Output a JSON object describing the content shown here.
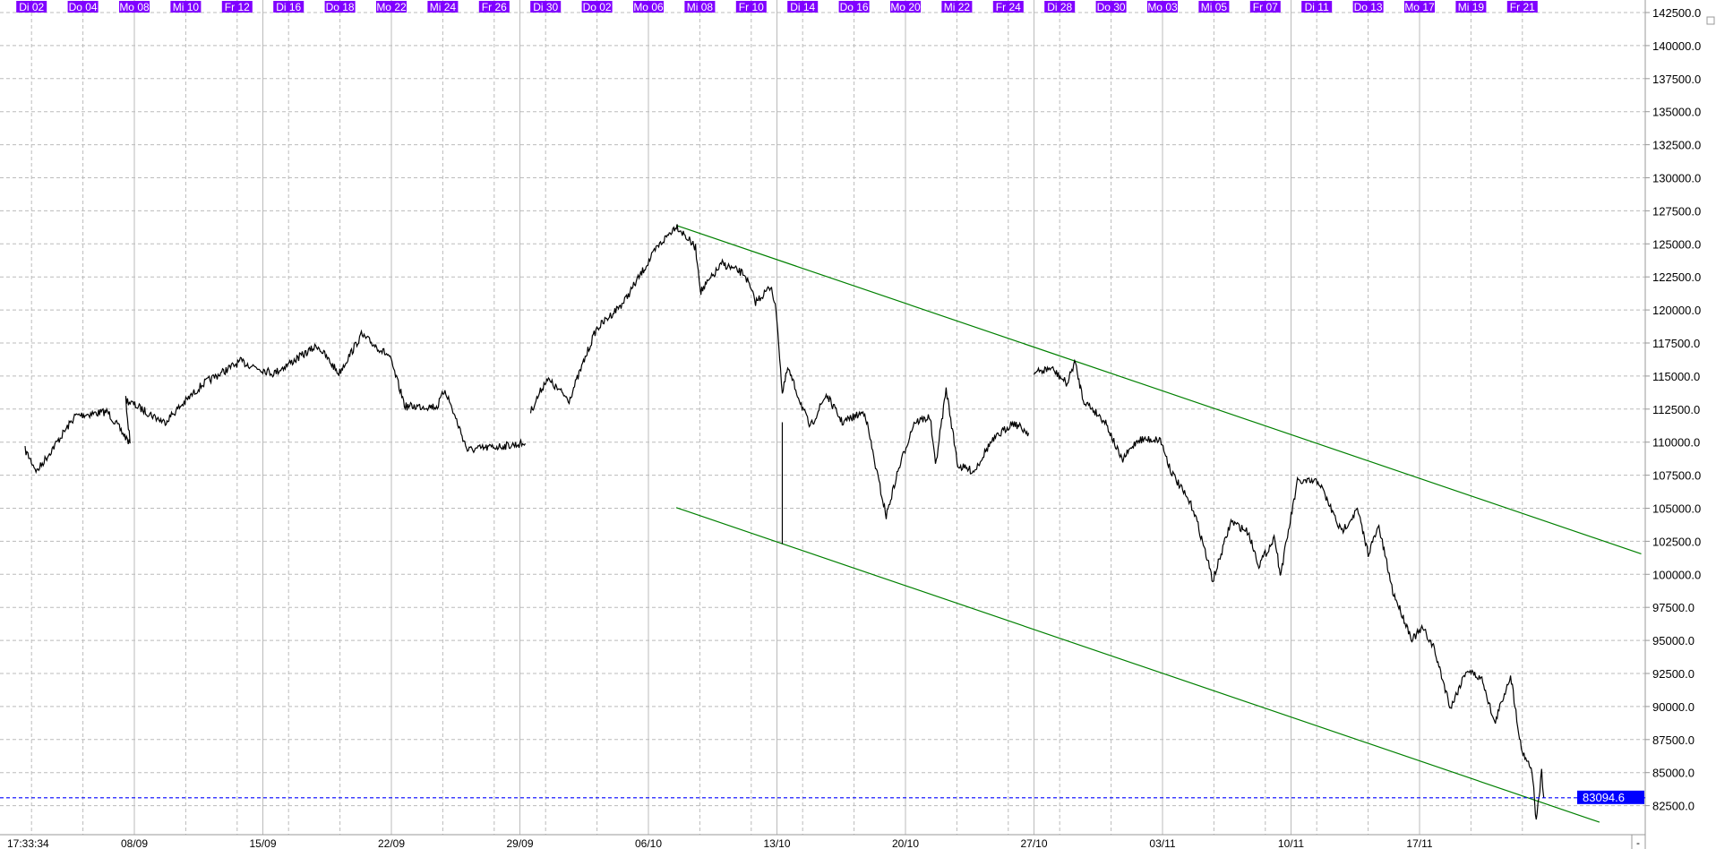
{
  "chart_data": {
    "type": "line",
    "title": "",
    "xlabel": "",
    "ylabel": "",
    "ylim": [
      81000,
      143300
    ],
    "y_ticks": [
      82500,
      85000,
      87500,
      90000,
      92500,
      95000,
      97500,
      100000,
      102500,
      105000,
      107500,
      110000,
      112500,
      115000,
      117500,
      120000,
      122500,
      125000,
      127500,
      130000,
      132500,
      135000,
      137500,
      140000,
      142500
    ],
    "y_tick_format": "0.0",
    "grid": true,
    "top_day_labels": [
      {
        "label": "Di 02",
        "date": "02.09"
      },
      {
        "label": "Do 04",
        "date": "04.09"
      },
      {
        "label": "Mo 08",
        "date": "08.09"
      },
      {
        "label": "Mi 10",
        "date": "10.09"
      },
      {
        "label": "Fr 12",
        "date": "12.09"
      },
      {
        "label": "Di 16",
        "date": "16.09"
      },
      {
        "label": "Do 18",
        "date": "18.09"
      },
      {
        "label": "Mo 22",
        "date": "22.09"
      },
      {
        "label": "Mi 24",
        "date": "24.09"
      },
      {
        "label": "Fr 26",
        "date": "26.09"
      },
      {
        "label": "Di 30",
        "date": "30.09"
      },
      {
        "label": "Do 02",
        "date": "02.10"
      },
      {
        "label": "Mo 06",
        "date": "06.10"
      },
      {
        "label": "Mi 08",
        "date": "08.10"
      },
      {
        "label": "Fr 10",
        "date": "10.10"
      },
      {
        "label": "Di 14",
        "date": "14.10"
      },
      {
        "label": "Do 16",
        "date": "16.10"
      },
      {
        "label": "Mo 20",
        "date": "20.10"
      },
      {
        "label": "Mi 22",
        "date": "22.10"
      },
      {
        "label": "Fr 24",
        "date": "24.10"
      },
      {
        "label": "Di 28",
        "date": "28.10"
      },
      {
        "label": "Do 30",
        "date": "30.10"
      },
      {
        "label": "Mo 03",
        "date": "03.11"
      },
      {
        "label": "Mi 05",
        "date": "05.11"
      },
      {
        "label": "Fr 07",
        "date": "07.11"
      },
      {
        "label": "Di 11",
        "date": "11.11"
      },
      {
        "label": "Do 13",
        "date": "13.11"
      },
      {
        "label": "Mo 17",
        "date": "17.11"
      },
      {
        "label": "Mi 19",
        "date": "19.11"
      },
      {
        "label": "Fr 21",
        "date": "21.11"
      }
    ],
    "bottom_start_label": "17:33:34",
    "bottom_week_labels": [
      {
        "label": "08/09",
        "date": "08.09"
      },
      {
        "label": "15/09",
        "date": "15.09"
      },
      {
        "label": "22/09",
        "date": "22.09"
      },
      {
        "label": "29/09",
        "date": "29.09"
      },
      {
        "label": "06/10",
        "date": "06.10"
      },
      {
        "label": "13/10",
        "date": "13.10"
      },
      {
        "label": "20/10",
        "date": "20.10"
      },
      {
        "label": "27/10",
        "date": "27.10"
      },
      {
        "label": "03/11",
        "date": "03.11"
      },
      {
        "label": "10/11",
        "date": "10.11"
      },
      {
        "label": "17/11",
        "date": "17.11"
      }
    ],
    "series": [
      {
        "color": "#000000",
        "segments": [
          [
            [
              "01.09 18:00",
              109400
            ],
            [
              "02.09 05:00",
              107800
            ],
            [
              "03.09 17:00",
              112000
            ],
            [
              "04.09 23:00",
              112300
            ],
            [
              "05.09 20:00",
              109900
            ],
            [
              "05.09 16:00",
              113200
            ],
            [
              "09.09 04:00",
              111500
            ],
            [
              "10.09 16:00",
              114400
            ],
            [
              "12.09 03:00",
              116100
            ],
            [
              "15.09 10:00",
              115200
            ],
            [
              "17.09 03:00",
              117300
            ],
            [
              "17.09 23:00",
              115200
            ],
            [
              "18.09 20:00",
              118100
            ],
            [
              "19.09 22:00",
              116500
            ],
            [
              "22.09 13:00",
              112700
            ],
            [
              "23.09 19:00",
              112700
            ],
            [
              "24.09 02:00",
              114000
            ],
            [
              "24.09 23:00",
              109400
            ],
            [
              "29.09 05:00",
              109900
            ]
          ],
          [
            [
              "29.09 10:00",
              112300
            ],
            [
              "30.09 01:00",
              114800
            ],
            [
              "30.09 22:00",
              113200
            ],
            [
              "01.10 23:00",
              118500
            ],
            [
              "03.10 01:00",
              120600
            ],
            [
              "06.10 08:00",
              124700
            ],
            [
              "07.10 02:00",
              126400
            ],
            [
              "07.10 20:00",
              124700
            ],
            [
              "08.10 01:00",
              121400
            ],
            [
              "08.10 21:00",
              123500
            ],
            [
              "09.10 18:00",
              122700
            ],
            [
              "10.10 04:00",
              120600
            ],
            [
              "10.10 19:00",
              121800
            ],
            [
              "13.10 00:00",
              119400
            ],
            [
              "13.10 05:00",
              113600
            ],
            [
              "13.10 10:00",
              115600
            ],
            [
              "14.10 07:00",
              111100
            ],
            [
              "14.10 22:00",
              113600
            ],
            [
              "15.10 13:00",
              111500
            ],
            [
              "16.10 10:00",
              112300
            ],
            [
              "16.10 20:00",
              108200
            ],
            [
              "17.10 06:00",
              104400
            ],
            [
              "17.10 17:00",
              107800
            ],
            [
              "20.10 08:00",
              111500
            ],
            [
              "20.10 23:00",
              111900
            ],
            [
              "21.10 04:00",
              108200
            ],
            [
              "21.10 14:00",
              114000
            ],
            [
              "22.10 01:00",
              108200
            ],
            [
              "22.10 16:00",
              107800
            ],
            [
              "23.10 07:00",
              109900
            ],
            [
              "24.10 04:00",
              111500
            ],
            [
              "24.10 19:00",
              110700
            ]
          ],
          [
            [
              "27.10 00:00",
              115200
            ],
            [
              "27.10 16:00",
              115600
            ],
            [
              "28.10 07:00",
              114400
            ],
            [
              "28.10 14:00",
              116100
            ],
            [
              "28.10 22:00",
              113200
            ],
            [
              "29.10 19:00",
              111500
            ],
            [
              "30.10 10:00",
              108600
            ],
            [
              "31.10 01:00",
              110200
            ],
            [
              "31.10 22:00",
              110200
            ],
            [
              "03.11 08:00",
              107800
            ],
            [
              "04.11 05:00",
              104900
            ],
            [
              "04.11 15:00",
              102000
            ],
            [
              "04.11 23:00",
              99500
            ],
            [
              "05.11 16:00",
              104000
            ],
            [
              "06.11 08:00",
              103200
            ],
            [
              "06.11 18:00",
              100700
            ],
            [
              "07.11 09:00",
              102800
            ],
            [
              "07.11 14:00",
              99900
            ],
            [
              "10.11 06:00",
              107000
            ],
            [
              "11.11 02:00",
              107000
            ],
            [
              "11.11 23:00",
              103200
            ],
            [
              "12.11 14:00",
              104900
            ],
            [
              "13.11 00:00",
              101600
            ],
            [
              "13.11 10:00",
              103600
            ],
            [
              "13.11 23:00",
              98700
            ],
            [
              "14.11 17:00",
              95100
            ],
            [
              "17.11 03:00",
              95900
            ],
            [
              "17.11 13:00",
              94500
            ],
            [
              "18.11 05:00",
              89900
            ],
            [
              "18.11 20:00",
              92800
            ],
            [
              "19.11 11:00",
              92000
            ],
            [
              "19.11 22:00",
              88700
            ],
            [
              "20.11 13:00",
              92400
            ],
            [
              "20.11 23:00",
              86800
            ],
            [
              "21.11 09:00",
              85200
            ],
            [
              "21.11 13:00",
              81300
            ],
            [
              "21.11 18:00",
              85000
            ],
            [
              "21.11 20:00",
              83100
            ]
          ]
        ]
      }
    ],
    "spike": {
      "x": "13.10 05:00",
      "high": 111500,
      "low": 102300
    },
    "trend_lines": [
      {
        "color": "#008000",
        "from": [
          "07.10 02:00",
          126400
        ],
        "to": [
          "27.11 15:00",
          101550
        ]
      },
      {
        "color": "#008000",
        "from": [
          "07.10 02:00",
          105050
        ],
        "to": [
          "26.11 00:00",
          81250
        ]
      }
    ],
    "current_price": {
      "value": 83094.6,
      "label": "83094.6",
      "color": "#0000ff"
    },
    "label_color": "#8000ff"
  }
}
